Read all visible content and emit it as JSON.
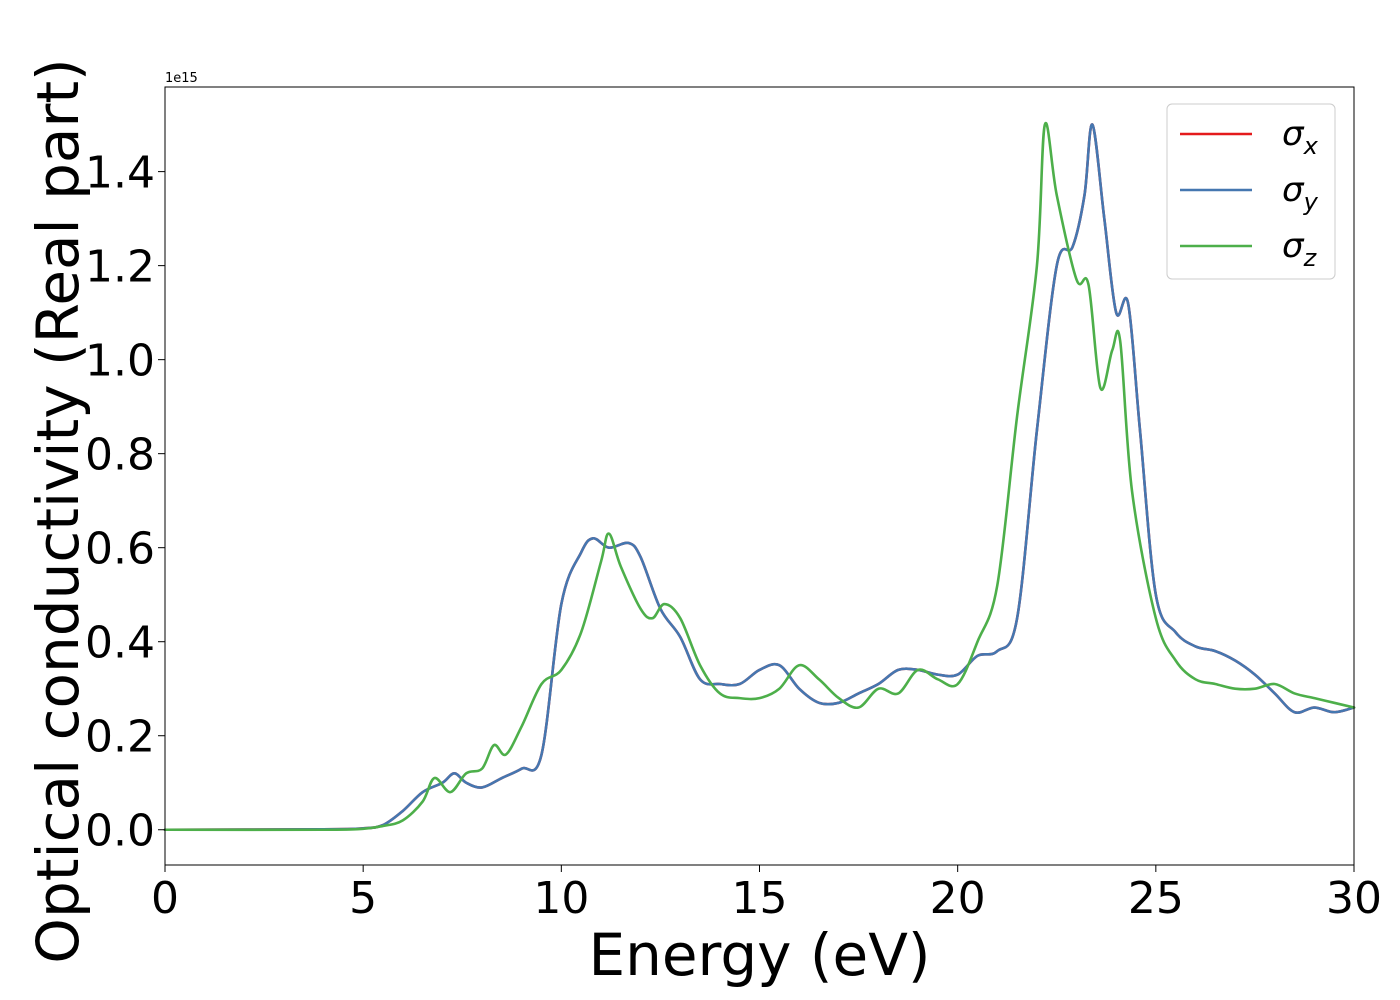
{
  "chart_data": {
    "type": "line",
    "xlabel": "Energy (eV)",
    "ylabel": "Optical conductivity (Real part)",
    "y_offset_label": "1e15",
    "xlim": [
      0,
      30
    ],
    "ylim": [
      -0.075,
      1.58
    ],
    "x_ticks": [
      0,
      5,
      10,
      15,
      20,
      25,
      30
    ],
    "x_tick_labels": [
      "0",
      "5",
      "10",
      "15",
      "20",
      "25",
      "30"
    ],
    "y_ticks": [
      0.0,
      0.2,
      0.4,
      0.6,
      0.8,
      1.0,
      1.2,
      1.4
    ],
    "y_tick_labels": [
      "0.0",
      "0.2",
      "0.4",
      "0.6",
      "0.8",
      "1.0",
      "1.2",
      "1.4"
    ],
    "grid": false,
    "legend_position": "upper right",
    "series": [
      {
        "name": "σx",
        "symbol": "σ",
        "subscript": "x",
        "color": "#e41a1c",
        "x": [
          0,
          4,
          5,
          5.5,
          6,
          6.5,
          7,
          7.3,
          7.6,
          8,
          8.5,
          9,
          9.5,
          10,
          10.5,
          10.8,
          11.2,
          11.7,
          12,
          12.5,
          13,
          13.5,
          14,
          14.5,
          15,
          15.5,
          16,
          16.5,
          17,
          17.5,
          18,
          18.5,
          19,
          19.5,
          20,
          20.5,
          21,
          21.5,
          22,
          22.5,
          22.9,
          23.2,
          23.4,
          23.7,
          24,
          24.3,
          24.6,
          25,
          25.5,
          26,
          26.5,
          27,
          27.5,
          28,
          28.5,
          29,
          29.5,
          30
        ],
        "y": [
          0.0,
          0.001,
          0.003,
          0.01,
          0.04,
          0.08,
          0.1,
          0.12,
          0.1,
          0.09,
          0.11,
          0.13,
          0.16,
          0.48,
          0.59,
          0.62,
          0.6,
          0.61,
          0.58,
          0.47,
          0.41,
          0.32,
          0.31,
          0.31,
          0.34,
          0.35,
          0.3,
          0.27,
          0.27,
          0.29,
          0.31,
          0.34,
          0.34,
          0.33,
          0.33,
          0.37,
          0.38,
          0.45,
          0.85,
          1.2,
          1.24,
          1.35,
          1.5,
          1.3,
          1.1,
          1.12,
          0.85,
          0.5,
          0.42,
          0.39,
          0.38,
          0.36,
          0.33,
          0.29,
          0.25,
          0.26,
          0.25,
          0.26
        ]
      },
      {
        "name": "σy",
        "symbol": "σ",
        "subscript": "y",
        "color": "#4577b0",
        "x": [
          0,
          4,
          5,
          5.5,
          6,
          6.5,
          7,
          7.3,
          7.6,
          8,
          8.5,
          9,
          9.5,
          10,
          10.5,
          10.8,
          11.2,
          11.7,
          12,
          12.5,
          13,
          13.5,
          14,
          14.5,
          15,
          15.5,
          16,
          16.5,
          17,
          17.5,
          18,
          18.5,
          19,
          19.5,
          20,
          20.5,
          21,
          21.5,
          22,
          22.5,
          22.9,
          23.2,
          23.4,
          23.7,
          24,
          24.3,
          24.6,
          25,
          25.5,
          26,
          26.5,
          27,
          27.5,
          28,
          28.5,
          29,
          29.5,
          30
        ],
        "y": [
          0.0,
          0.001,
          0.003,
          0.01,
          0.04,
          0.08,
          0.1,
          0.12,
          0.1,
          0.09,
          0.11,
          0.13,
          0.16,
          0.48,
          0.59,
          0.62,
          0.6,
          0.61,
          0.58,
          0.47,
          0.41,
          0.32,
          0.31,
          0.31,
          0.34,
          0.35,
          0.3,
          0.27,
          0.27,
          0.29,
          0.31,
          0.34,
          0.34,
          0.33,
          0.33,
          0.37,
          0.38,
          0.45,
          0.85,
          1.2,
          1.24,
          1.35,
          1.5,
          1.3,
          1.1,
          1.12,
          0.85,
          0.5,
          0.42,
          0.39,
          0.38,
          0.36,
          0.33,
          0.29,
          0.25,
          0.26,
          0.25,
          0.26
        ]
      },
      {
        "name": "σz",
        "symbol": "σ",
        "subscript": "z",
        "color": "#4daf4a",
        "x": [
          0,
          4,
          5,
          5.5,
          6,
          6.5,
          6.8,
          7.2,
          7.6,
          8,
          8.3,
          8.6,
          9,
          9.5,
          10,
          10.5,
          11,
          11.2,
          11.5,
          12,
          12.3,
          12.6,
          13,
          13.5,
          14,
          14.5,
          15,
          15.5,
          16,
          16.5,
          17,
          17.5,
          18,
          18.5,
          19,
          19.5,
          20,
          20.5,
          21,
          21.5,
          22,
          22.2,
          22.5,
          23,
          23.3,
          23.6,
          23.9,
          24.1,
          24.4,
          25,
          25.5,
          26,
          26.5,
          27,
          27.5,
          28,
          28.5,
          29,
          29.5,
          30
        ],
        "y": [
          0.0,
          0.0,
          0.002,
          0.008,
          0.02,
          0.06,
          0.11,
          0.08,
          0.12,
          0.13,
          0.18,
          0.16,
          0.22,
          0.31,
          0.34,
          0.42,
          0.57,
          0.63,
          0.56,
          0.47,
          0.45,
          0.48,
          0.45,
          0.35,
          0.29,
          0.28,
          0.28,
          0.3,
          0.35,
          0.32,
          0.28,
          0.26,
          0.3,
          0.29,
          0.34,
          0.32,
          0.31,
          0.4,
          0.52,
          0.88,
          1.2,
          1.5,
          1.35,
          1.17,
          1.16,
          0.94,
          1.02,
          1.04,
          0.72,
          0.45,
          0.36,
          0.32,
          0.31,
          0.3,
          0.3,
          0.31,
          0.29,
          0.28,
          0.27,
          0.26
        ]
      }
    ]
  }
}
